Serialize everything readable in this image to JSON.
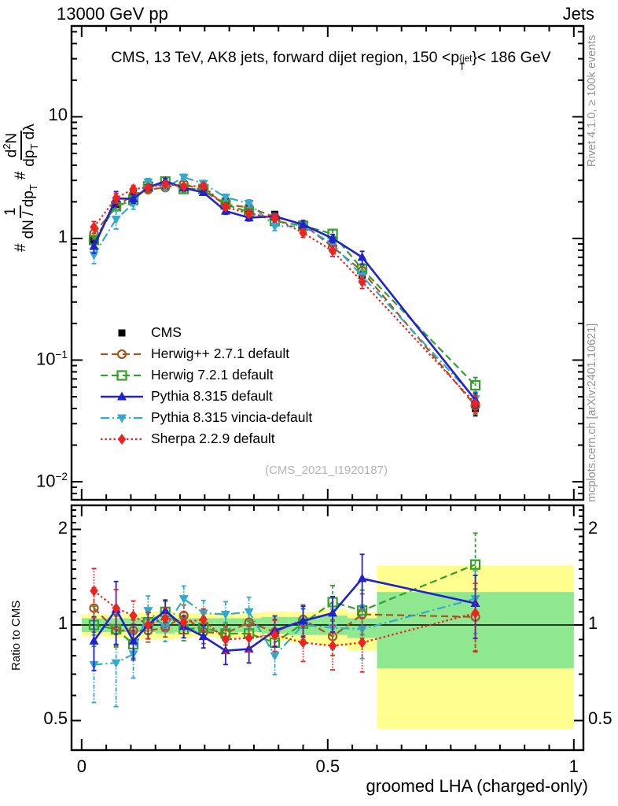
{
  "header": {
    "left": "13000 GeV pp",
    "right": "Jets"
  },
  "title": {
    "prefix": "CMS, 13 TeV, AK8 jets, forward dijet region, 150 <p",
    "sup": "{jet",
    "sub": "T",
    "suffix": "}< 186 GeV"
  },
  "watermark": "(CMS_2021_I1920187)",
  "side_labels": {
    "rivet": "Rivet 4.1.0, ≥ 100k events",
    "mcplots": "mcplots.cern.ch [arXiv:2401.10621]"
  },
  "axis_labels": {
    "x": "groomed LHA (charged-only)",
    "ratio_y": "Ratio to CMS",
    "main_y": {
      "hash1": "#",
      "f1_num": "1",
      "f1_den": "dN / dp",
      "f1_den_sub": "T",
      "hash2": "#",
      "f2_num_a": "d",
      "f2_num_sup": "2",
      "f2_num_b": "N",
      "f2_den": "dp",
      "f2_den_sub": "T",
      "f2_den_tail": " dλ"
    }
  },
  "colors": {
    "cms": "#000000",
    "herwigpp": "#a2591d",
    "herwig7": "#33a02c",
    "pythia": "#2222cc",
    "vincia": "#33aacc",
    "sherpa": "#ee2222",
    "band_yellow": "#ffff8f",
    "band_green": "#8fe88f",
    "gray_text": "#949494",
    "watermark_gray": "#b4b4b4"
  },
  "chart_data": {
    "type": "line",
    "title": "CMS, 13 TeV, AK8 jets, forward dijet region, 150 <p{jet}_T}< 186 GeV",
    "xlabel": "groomed LHA (charged-only)",
    "ylabel": "# 1/(dN/dp_T) # d2N/(dp_T dlambda)",
    "ratio_ylabel": "Ratio to CMS",
    "x": [
      0.025,
      0.07,
      0.105,
      0.135,
      0.17,
      0.2075,
      0.2475,
      0.2925,
      0.34,
      0.3925,
      0.45,
      0.51,
      0.57,
      0.8
    ],
    "bin_edges": [
      0,
      0.05,
      0.09,
      0.12,
      0.15,
      0.19,
      0.225,
      0.27,
      0.315,
      0.365,
      0.42,
      0.48,
      0.54,
      0.6,
      1.0
    ],
    "xlim": [
      -0.0205,
      1.0195
    ],
    "main_ylim": [
      0.0071,
      55.8
    ],
    "ratio_ylim": [
      0.4036,
      2.381
    ],
    "x_ticks": [
      {
        "v": 0,
        "label": "0"
      },
      {
        "v": 0.5,
        "label": "0.5"
      },
      {
        "v": 1,
        "label": "1"
      }
    ],
    "main_y_ticks": [
      {
        "v": 10,
        "base": "10",
        "exp": ""
      },
      {
        "v": 1,
        "base": "1",
        "exp": ""
      },
      {
        "v": 0.1,
        "base": "10",
        "exp": "−1"
      },
      {
        "v": 0.01,
        "base": "10",
        "exp": "−2"
      }
    ],
    "ratio_y_ticks": [
      {
        "v": 2,
        "label": "2"
      },
      {
        "v": 1,
        "label": "1"
      },
      {
        "v": 0.5,
        "label": "0.5"
      }
    ],
    "series": [
      {
        "name": "CMS",
        "color": "#000000",
        "marker": "square-filled",
        "line": "none",
        "values": [
          0.97,
          1.9,
          2.38,
          2.62,
          2.67,
          2.63,
          2.6,
          2.02,
          1.76,
          1.58,
          1.26,
          0.92,
          0.5,
          0.04
        ],
        "ratio": [
          1,
          1,
          1,
          1,
          1,
          1,
          1,
          1,
          1,
          1,
          1,
          1,
          1,
          1
        ],
        "rel_err": [
          0.08,
          0.05,
          0.04,
          0.04,
          0.04,
          0.04,
          0.04,
          0.04,
          0.05,
          0.05,
          0.06,
          0.07,
          0.09,
          0.13
        ]
      },
      {
        "name": "Herwig++ 2.7.1 default",
        "color": "#a2591d",
        "marker": "circle-open",
        "line": "dashed",
        "values": [
          1.1,
          1.82,
          2.28,
          2.52,
          2.62,
          2.81,
          2.47,
          1.9,
          1.8,
          1.5,
          1.31,
          0.85,
          0.54,
          0.042
        ],
        "ratio": [
          1.13,
          0.96,
          0.96,
          0.96,
          0.98,
          1.07,
          0.95,
          0.94,
          1.02,
          0.95,
          1.04,
          0.92,
          1.08,
          1.06
        ],
        "rel_err": [
          0.1,
          0.07,
          0.05,
          0.05,
          0.04,
          0.05,
          0.05,
          0.05,
          0.05,
          0.06,
          0.07,
          0.08,
          0.1,
          0.14
        ]
      },
      {
        "name": "Herwig 7.2.1 default",
        "color": "#33a02c",
        "marker": "square-open",
        "line": "dashed",
        "values": [
          0.97,
          1.84,
          2.07,
          2.67,
          2.94,
          2.55,
          2.55,
          1.9,
          1.65,
          1.39,
          1.27,
          1.09,
          0.56,
          0.062
        ],
        "ratio": [
          1.0,
          0.97,
          0.87,
          1.02,
          1.1,
          0.97,
          0.98,
          0.94,
          0.94,
          0.88,
          1.01,
          1.18,
          1.11,
          1.55
        ],
        "rel_err": [
          0.09,
          0.07,
          0.06,
          0.05,
          0.05,
          0.05,
          0.05,
          0.05,
          0.06,
          0.06,
          0.07,
          0.08,
          0.1,
          0.16
        ]
      },
      {
        "name": "Pythia 8.315 default",
        "color": "#2222cc",
        "marker": "triangle-up",
        "line": "solid",
        "values": [
          0.86,
          2.13,
          2.12,
          2.62,
          2.96,
          2.6,
          2.39,
          1.68,
          1.48,
          1.52,
          1.3,
          1.0,
          0.7,
          0.047
        ],
        "ratio": [
          0.89,
          1.12,
          0.89,
          1.0,
          1.11,
          0.99,
          0.92,
          0.83,
          0.84,
          0.96,
          1.03,
          1.09,
          1.4,
          1.17
        ],
        "rel_err": [
          0.12,
          0.14,
          0.08,
          0.06,
          0.05,
          0.05,
          0.05,
          0.06,
          0.06,
          0.07,
          0.07,
          0.08,
          0.12,
          0.14
        ]
      },
      {
        "name": "Pythia 8.315 vincia-default",
        "color": "#33aacc",
        "marker": "triangle-down",
        "line": "dashdot",
        "values": [
          0.73,
          1.44,
          1.93,
          2.91,
          2.62,
          3.18,
          2.83,
          2.18,
          1.94,
          1.26,
          1.26,
          0.9,
          0.49,
          0.048
        ],
        "ratio": [
          0.75,
          0.76,
          0.81,
          1.11,
          0.98,
          1.21,
          1.09,
          1.08,
          1.1,
          0.8,
          1.0,
          0.98,
          0.97,
          1.21
        ],
        "rel_err": [
          0.15,
          0.17,
          0.1,
          0.07,
          0.06,
          0.06,
          0.06,
          0.06,
          0.07,
          0.08,
          0.08,
          0.09,
          0.12,
          0.14
        ]
      },
      {
        "name": "Sherpa 2.2.9 default",
        "color": "#ee2222",
        "marker": "diamond",
        "line": "dotted",
        "values": [
          1.24,
          2.15,
          2.55,
          2.62,
          2.8,
          2.68,
          2.7,
          1.82,
          1.6,
          1.47,
          1.11,
          0.79,
          0.44,
          0.044
        ],
        "ratio": [
          1.28,
          1.13,
          1.07,
          1.0,
          1.05,
          1.02,
          1.04,
          0.9,
          0.91,
          0.93,
          0.88,
          0.86,
          0.88,
          1.09
        ],
        "rel_err": [
          0.11,
          0.09,
          0.07,
          0.06,
          0.05,
          0.05,
          0.05,
          0.06,
          0.06,
          0.07,
          0.08,
          0.1,
          0.12,
          0.15
        ]
      }
    ],
    "bands": {
      "yellow_color": "#ffff8f",
      "green_color": "#8fe88f",
      "yellow_ranges": [
        [
          0.92,
          1.08
        ],
        [
          0.91,
          1.08
        ],
        [
          0.9,
          1.09
        ],
        [
          0.9,
          1.1
        ],
        [
          0.9,
          1.1
        ],
        [
          0.91,
          1.09
        ],
        [
          0.92,
          1.09
        ],
        [
          0.91,
          1.08
        ],
        [
          0.91,
          1.09
        ],
        [
          0.89,
          1.1
        ],
        [
          0.88,
          1.1
        ],
        [
          0.86,
          1.12
        ],
        [
          0.83,
          1.1
        ],
        [
          0.47,
          1.54
        ]
      ],
      "green_ranges": [
        [
          0.95,
          1.05
        ],
        [
          0.95,
          1.05
        ],
        [
          0.95,
          1.05
        ],
        [
          0.95,
          1.06
        ],
        [
          0.94,
          1.06
        ],
        [
          0.95,
          1.05
        ],
        [
          0.95,
          1.05
        ],
        [
          0.95,
          1.05
        ],
        [
          0.95,
          1.05
        ],
        [
          0.94,
          1.06
        ],
        [
          0.93,
          1.06
        ],
        [
          0.93,
          1.07
        ],
        [
          0.91,
          1.05
        ],
        [
          0.73,
          1.27
        ]
      ]
    },
    "legend_position": "center-left"
  }
}
